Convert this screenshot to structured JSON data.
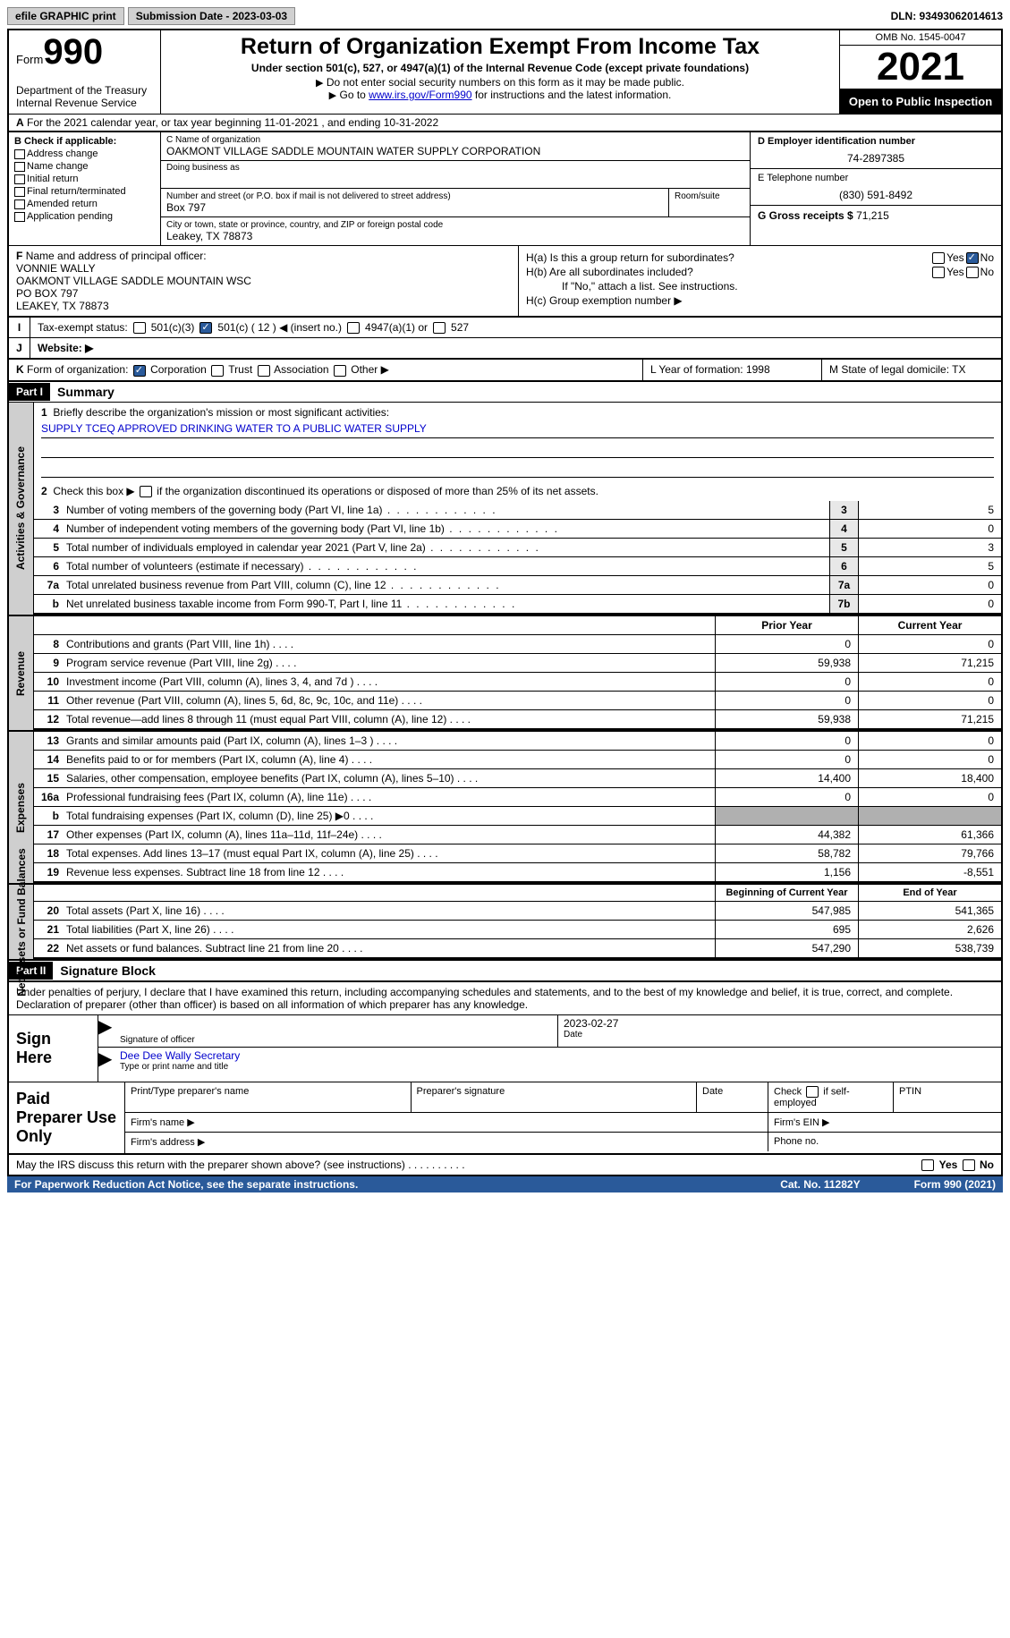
{
  "top": {
    "efile": "efile GRAPHIC print",
    "submission": "Submission Date - 2023-03-03",
    "dln": "DLN: 93493062014613"
  },
  "header": {
    "form_word": "Form",
    "form_number": "990",
    "dept": "Department of the Treasury\nInternal Revenue Service",
    "title": "Return of Organization Exempt From Income Tax",
    "subtitle": "Under section 501(c), 527, or 4947(a)(1) of the Internal Revenue Code (except private foundations)",
    "instr1": "Do not enter social security numbers on this form as it may be made public.",
    "instr2_pre": "Go to ",
    "instr2_link": "www.irs.gov/Form990",
    "instr2_post": " for instructions and the latest information.",
    "omb": "OMB No. 1545-0047",
    "year": "2021",
    "inspect": "Open to Public Inspection"
  },
  "rowA": {
    "label": "A",
    "text": "For the 2021 calendar year, or tax year beginning 11-01-2021   , and ending 10-31-2022"
  },
  "colB": {
    "label": "B Check if applicable:",
    "items": [
      "Address change",
      "Name change",
      "Initial return",
      "Final return/terminated",
      "Amended return",
      "Application pending"
    ]
  },
  "colC": {
    "name_lbl": "C Name of organization",
    "name_val": "OAKMONT VILLAGE SADDLE MOUNTAIN WATER SUPPLY CORPORATION",
    "dba_lbl": "Doing business as",
    "street_lbl": "Number and street (or P.O. box if mail is not delivered to street address)",
    "street_val": "Box 797",
    "room_lbl": "Room/suite",
    "city_lbl": "City or town, state or province, country, and ZIP or foreign postal code",
    "city_val": "Leakey, TX   78873"
  },
  "colD": {
    "ein_lbl": "D Employer identification number",
    "ein_val": "74-2897385",
    "phone_lbl": "E Telephone number",
    "phone_val": "(830) 591-8492",
    "gross_lbl": "G Gross receipts $",
    "gross_val": "71,215"
  },
  "rowF": {
    "label": "F",
    "lbl": "Name and address of principal officer:",
    "line1": "VONNIE WALLY",
    "line2": "OAKMONT VILLAGE SADDLE MOUNTAIN WSC",
    "line3": "PO BOX 797",
    "line4": "LEAKEY, TX  78873"
  },
  "rowH": {
    "ha_lbl": "H(a)  Is this a group return for subordinates?",
    "hb_lbl": "H(b)  Are all subordinates included?",
    "hb_note": "If \"No,\" attach a list. See instructions.",
    "hc_lbl": "H(c)  Group exemption number ▶",
    "yes": "Yes",
    "no": "No"
  },
  "rowI": {
    "label": "I",
    "lbl": "Tax-exempt status:",
    "opt1": "501(c)(3)",
    "opt2": "501(c) ( 12 ) ◀ (insert no.)",
    "opt3": "4947(a)(1) or",
    "opt4": "527"
  },
  "rowJ": {
    "label": "J",
    "lbl": "Website: ▶"
  },
  "rowK": {
    "label": "K",
    "lbl": "Form of organization:",
    "opts": [
      "Corporation",
      "Trust",
      "Association",
      "Other ▶"
    ],
    "L": "L Year of formation: 1998",
    "M": "M State of legal domicile: TX"
  },
  "part1": {
    "hdr": "Part I",
    "title": "Summary",
    "line1_lbl": "Briefly describe the organization's mission or most significant activities:",
    "mission": "SUPPLY TCEQ APPROVED DRINKING WATER TO A PUBLIC WATER SUPPLY",
    "line2": "Check this box ▶      if the organization discontinued its operations or disposed of more than 25% of its net assets.",
    "side1": "Activities & Governance",
    "side2": "Revenue",
    "side3": "Expenses",
    "side4": "Net Assets or Fund Balances",
    "rows_gov": [
      {
        "n": "3",
        "t": "Number of voting members of the governing body (Part VI, line 1a)",
        "b": "3",
        "v": "5"
      },
      {
        "n": "4",
        "t": "Number of independent voting members of the governing body (Part VI, line 1b)",
        "b": "4",
        "v": "0"
      },
      {
        "n": "5",
        "t": "Total number of individuals employed in calendar year 2021 (Part V, line 2a)",
        "b": "5",
        "v": "3"
      },
      {
        "n": "6",
        "t": "Total number of volunteers (estimate if necessary)",
        "b": "6",
        "v": "5"
      },
      {
        "n": "7a",
        "t": "Total unrelated business revenue from Part VIII, column (C), line 12",
        "b": "7a",
        "v": "0"
      },
      {
        "n": "b",
        "t": "Net unrelated business taxable income from Form 990-T, Part I, line 11",
        "b": "7b",
        "v": "0"
      }
    ],
    "col_hdr": {
      "prior": "Prior Year",
      "current": "Current Year"
    },
    "rows_rev": [
      {
        "n": "8",
        "t": "Contributions and grants (Part VIII, line 1h)",
        "p": "0",
        "c": "0"
      },
      {
        "n": "9",
        "t": "Program service revenue (Part VIII, line 2g)",
        "p": "59,938",
        "c": "71,215"
      },
      {
        "n": "10",
        "t": "Investment income (Part VIII, column (A), lines 3, 4, and 7d )",
        "p": "0",
        "c": "0"
      },
      {
        "n": "11",
        "t": "Other revenue (Part VIII, column (A), lines 5, 6d, 8c, 9c, 10c, and 11e)",
        "p": "0",
        "c": "0"
      },
      {
        "n": "12",
        "t": "Total revenue—add lines 8 through 11 (must equal Part VIII, column (A), line 12)",
        "p": "59,938",
        "c": "71,215"
      }
    ],
    "rows_exp": [
      {
        "n": "13",
        "t": "Grants and similar amounts paid (Part IX, column (A), lines 1–3 )",
        "p": "0",
        "c": "0"
      },
      {
        "n": "14",
        "t": "Benefits paid to or for members (Part IX, column (A), line 4)",
        "p": "0",
        "c": "0"
      },
      {
        "n": "15",
        "t": "Salaries, other compensation, employee benefits (Part IX, column (A), lines 5–10)",
        "p": "14,400",
        "c": "18,400"
      },
      {
        "n": "16a",
        "t": "Professional fundraising fees (Part IX, column (A), line 11e)",
        "p": "0",
        "c": "0"
      },
      {
        "n": "b",
        "t": "Total fundraising expenses (Part IX, column (D), line 25) ▶0",
        "p": "",
        "c": "",
        "shaded": true
      },
      {
        "n": "17",
        "t": "Other expenses (Part IX, column (A), lines 11a–11d, 11f–24e)",
        "p": "44,382",
        "c": "61,366"
      },
      {
        "n": "18",
        "t": "Total expenses. Add lines 13–17 (must equal Part IX, column (A), line 25)",
        "p": "58,782",
        "c": "79,766"
      },
      {
        "n": "19",
        "t": "Revenue less expenses. Subtract line 18 from line 12",
        "p": "1,156",
        "c": "-8,551"
      }
    ],
    "col_hdr2": {
      "begin": "Beginning of Current Year",
      "end": "End of Year"
    },
    "rows_net": [
      {
        "n": "20",
        "t": "Total assets (Part X, line 16)",
        "p": "547,985",
        "c": "541,365"
      },
      {
        "n": "21",
        "t": "Total liabilities (Part X, line 26)",
        "p": "695",
        "c": "2,626"
      },
      {
        "n": "22",
        "t": "Net assets or fund balances. Subtract line 21 from line 20",
        "p": "547,290",
        "c": "538,739"
      }
    ]
  },
  "part2": {
    "hdr": "Part II",
    "title": "Signature Block",
    "decl": "Under penalties of perjury, I declare that I have examined this return, including accompanying schedules and statements, and to the best of my knowledge and belief, it is true, correct, and complete. Declaration of preparer (other than officer) is based on all information of which preparer has any knowledge.",
    "sign_here": "Sign Here",
    "sig_off": "Signature of officer",
    "sig_date_val": "2023-02-27",
    "sig_date": "Date",
    "name_val": "Dee Dee Wally  Secretary",
    "name_lbl": "Type or print name and title",
    "paid": "Paid Preparer Use Only",
    "prep_name": "Print/Type preparer's name",
    "prep_sig": "Preparer's signature",
    "prep_date": "Date",
    "prep_check": "Check        if self-employed",
    "ptin": "PTIN",
    "firm_name": "Firm's name   ▶",
    "firm_ein": "Firm's EIN ▶",
    "firm_addr": "Firm's address ▶",
    "phone": "Phone no.",
    "may_irs": "May the IRS discuss this return with the preparer shown above? (see instructions)"
  },
  "footer": {
    "pra": "For Paperwork Reduction Act Notice, see the separate instructions.",
    "cat": "Cat. No. 11282Y",
    "form": "Form 990 (2021)"
  }
}
